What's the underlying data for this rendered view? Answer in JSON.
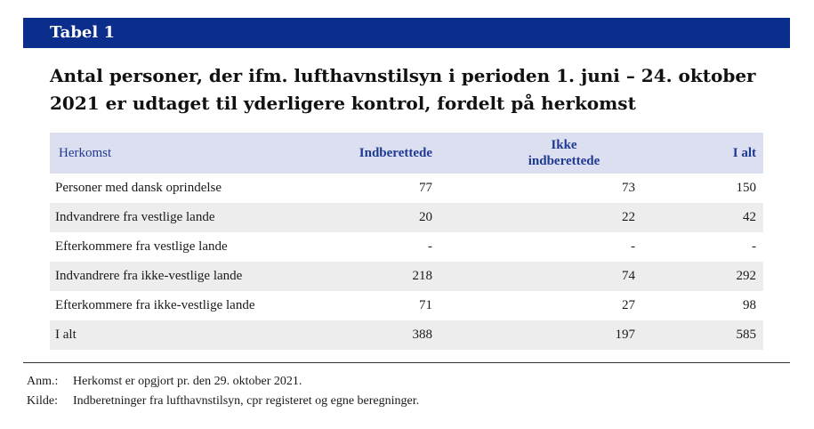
{
  "banner": {
    "label": "Tabel 1"
  },
  "title": "Antal personer, der ifm. lufthavnstilsyn i perioden 1. juni – 24. oktober 2021 er udtaget til yderligere kontrol, fordelt på herkomst",
  "table": {
    "headers": {
      "label": "Herkomst",
      "col1": "Indberettede",
      "col2_line1": "Ikke",
      "col2_line2": "indberettede",
      "col3": "I alt"
    },
    "rows": [
      {
        "label": "Personer med dansk oprindelse",
        "v1": "77",
        "v2": "73",
        "v3": "150"
      },
      {
        "label": "Indvandrere fra vestlige lande",
        "v1": "20",
        "v2": "22",
        "v3": "42"
      },
      {
        "label": "Efterkommere fra vestlige lande",
        "v1": "-",
        "v2": "-",
        "v3": "-"
      },
      {
        "label": "Indvandrere fra ikke-vestlige lande",
        "v1": "218",
        "v2": "74",
        "v3": "292"
      },
      {
        "label": "Efterkommere fra ikke-vestlige lande",
        "v1": "71",
        "v2": "27",
        "v3": "98"
      },
      {
        "label": "I alt",
        "v1": "388",
        "v2": "197",
        "v3": "585"
      }
    ]
  },
  "notes": {
    "anm_key": "Anm.:",
    "anm_text": "Herkomst er opgjort pr. den 29. oktober 2021.",
    "kilde_key": "Kilde:",
    "kilde_text": "Indberetninger fra lufthavnstilsyn, cpr registeret og egne beregninger."
  },
  "colors": {
    "banner_bg": "#0b2d8c",
    "header_bg": "#dcdff0",
    "header_text": "#1f3a93",
    "row_shade": "#ededed"
  }
}
